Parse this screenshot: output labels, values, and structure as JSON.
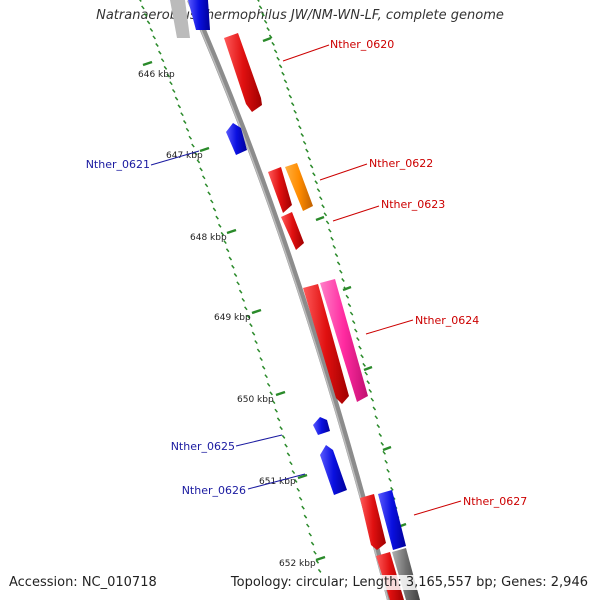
{
  "title": "Natranaerobius thermophilus JW/NM-WN-LF, complete genome",
  "footer": {
    "accession": "Accession: NC_010718",
    "summary": "Topology: circular; Length: 3,165,557 bp; Genes: 2,946"
  },
  "colors": {
    "backbone": "#8c8c8c",
    "tick": "#2a8a2a",
    "forward_gene": "#e01010",
    "reverse_gene": "#0a10e0",
    "orange_gene": "#ff8c00",
    "pink_gene": "#ff2aa0",
    "gray_gene": "#707070",
    "forward_label": "#cc0000",
    "reverse_label": "#1a1aa0"
  },
  "ruler": {
    "labels": [
      "646 kbp",
      "647 kbp",
      "648 kbp",
      "649 kbp",
      "650 kbp",
      "651 kbp",
      "652 kbp"
    ]
  },
  "genes": [
    {
      "label": "Nther_0620",
      "color": "forward_gene",
      "strand": "forward"
    },
    {
      "label": "Nther_0621",
      "color": "reverse_gene",
      "strand": "reverse"
    },
    {
      "label": "Nther_0622",
      "color": "orange_gene",
      "strand": "forward"
    },
    {
      "label": "Nther_0623",
      "color": "forward_gene",
      "strand": "forward"
    },
    {
      "label": "Nther_0624",
      "color": "pink_gene",
      "strand": "forward"
    },
    {
      "label": "Nther_0625",
      "color": "reverse_gene",
      "strand": "reverse"
    },
    {
      "label": "Nther_0626",
      "color": "reverse_gene",
      "strand": "reverse"
    },
    {
      "label": "Nther_0627",
      "color": "reverse_gene",
      "strand": "forward"
    }
  ]
}
